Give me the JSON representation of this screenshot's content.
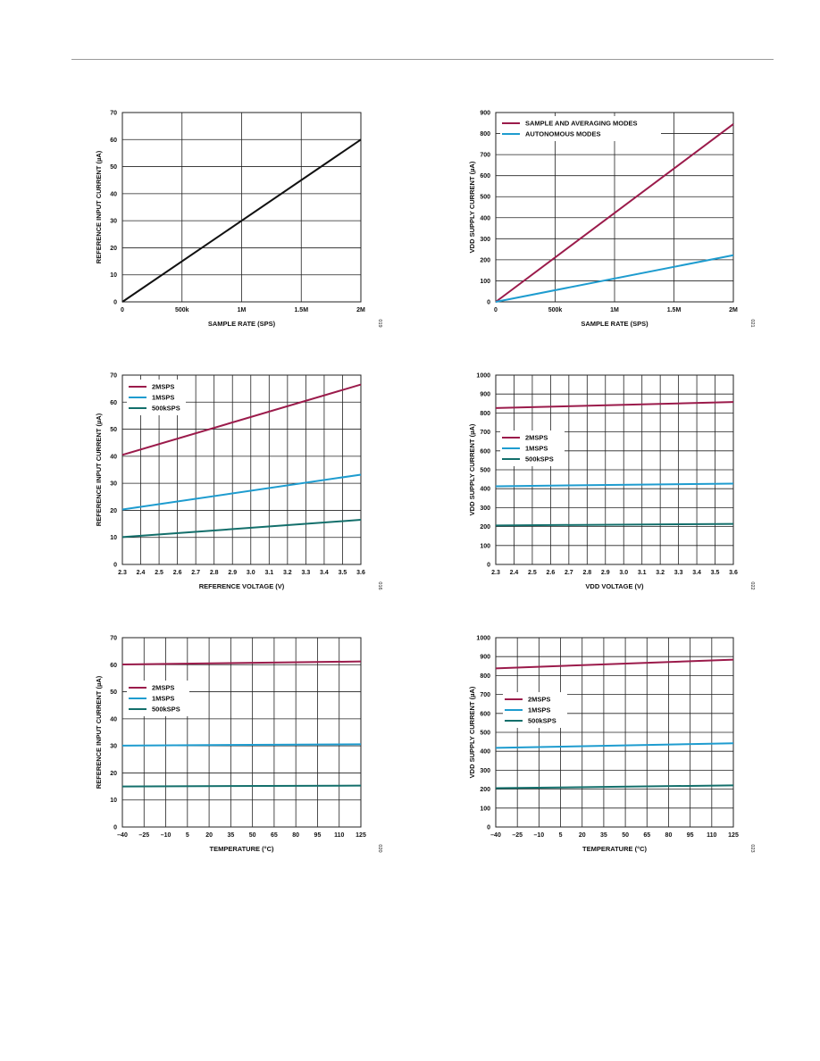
{
  "colors": {
    "maroon": "#9b1b4b",
    "cyan": "#1e9ccf",
    "teal": "#136f6b",
    "black": "#111111",
    "grid": "#222222"
  },
  "chart_data": [
    {
      "type": "line",
      "xlabel": "SAMPLE RATE (SPS)",
      "ylabel": "REFERENCE INPUT CURRENT (µA)",
      "xlim": [
        0,
        2000000
      ],
      "ylim": [
        0,
        70
      ],
      "x_ticks": [
        0,
        500000,
        1000000,
        1500000,
        2000000
      ],
      "x_tick_labels": [
        "0",
        "500k",
        "1M",
        "1.5M",
        "2M"
      ],
      "y_ticks": [
        0,
        10,
        20,
        30,
        40,
        50,
        60,
        70
      ],
      "y_tick_labels": [
        "0",
        "10",
        "20",
        "30",
        "40",
        "50",
        "60",
        "70"
      ],
      "grid": true,
      "legend": "none",
      "figure_number": "019",
      "series": [
        {
          "color": "black",
          "x": [
            0,
            2000000
          ],
          "y": [
            0,
            60
          ]
        }
      ]
    },
    {
      "type": "line",
      "xlabel": "SAMPLE RATE (SPS)",
      "ylabel": "VDD SUPPLY CURRENT (µA)",
      "xlim": [
        0,
        2000000
      ],
      "ylim": [
        0,
        900
      ],
      "x_ticks": [
        0,
        500000,
        1000000,
        1500000,
        2000000
      ],
      "x_tick_labels": [
        "0",
        "500k",
        "1M",
        "1.5M",
        "2M"
      ],
      "y_ticks": [
        0,
        100,
        200,
        300,
        400,
        500,
        600,
        700,
        800,
        900
      ],
      "y_tick_labels": [
        "0",
        "100",
        "200",
        "300",
        "400",
        "500",
        "600",
        "700",
        "800",
        "900"
      ],
      "grid": true,
      "legend": "top-left",
      "figure_number": "021",
      "series": [
        {
          "name": "SAMPLE AND AVERAGING MODES",
          "color": "maroon",
          "x": [
            0,
            2000000
          ],
          "y": [
            0,
            845
          ]
        },
        {
          "name": "AUTONOMOUS MODES",
          "color": "cyan",
          "x": [
            0,
            2000000
          ],
          "y": [
            0,
            222
          ]
        }
      ]
    },
    {
      "type": "line",
      "xlabel": "REFERENCE VOLTAGE (V)",
      "ylabel": "REFERENCE INPUT CURRENT (µA)",
      "xlim": [
        2.3,
        3.6
      ],
      "ylim": [
        0,
        70
      ],
      "x_ticks": [
        2.3,
        2.4,
        2.5,
        2.6,
        2.7,
        2.8,
        2.9,
        3.0,
        3.1,
        3.2,
        3.3,
        3.4,
        3.5,
        3.6
      ],
      "x_tick_labels": [
        "2.3",
        "2.4",
        "2.5",
        "2.6",
        "2.7",
        "2.8",
        "2.9",
        "3.0",
        "3.1",
        "3.2",
        "3.3",
        "3.4",
        "3.5",
        "3.6"
      ],
      "y_ticks": [
        0,
        10,
        20,
        30,
        40,
        50,
        60,
        70
      ],
      "y_tick_labels": [
        "0",
        "10",
        "20",
        "30",
        "40",
        "50",
        "60",
        "70"
      ],
      "grid": true,
      "legend": "top-left",
      "figure_number": "016",
      "series": [
        {
          "name": "2MSPS",
          "color": "maroon",
          "x": [
            2.3,
            3.6
          ],
          "y": [
            40.5,
            66.5
          ]
        },
        {
          "name": "1MSPS",
          "color": "cyan",
          "x": [
            2.3,
            3.6
          ],
          "y": [
            20.3,
            33.2
          ]
        },
        {
          "name": "500kSPS",
          "color": "teal",
          "x": [
            2.3,
            3.6
          ],
          "y": [
            10.1,
            16.5
          ]
        }
      ]
    },
    {
      "type": "line",
      "xlabel": "VDD VOLTAGE (V)",
      "ylabel": "VDD SUPPLY CURRENT (µA)",
      "xlim": [
        2.3,
        3.6
      ],
      "ylim": [
        0,
        1000
      ],
      "x_ticks": [
        2.3,
        2.4,
        2.5,
        2.6,
        2.7,
        2.8,
        2.9,
        3.0,
        3.1,
        3.2,
        3.3,
        3.4,
        3.5,
        3.6
      ],
      "x_tick_labels": [
        "2.3",
        "2.4",
        "2.5",
        "2.6",
        "2.7",
        "2.8",
        "2.9",
        "3.0",
        "3.1",
        "3.2",
        "3.3",
        "3.4",
        "3.5",
        "3.6"
      ],
      "y_ticks": [
        0,
        100,
        200,
        300,
        400,
        500,
        600,
        700,
        800,
        900,
        1000
      ],
      "y_tick_labels": [
        "0",
        "100",
        "200",
        "300",
        "400",
        "500",
        "600",
        "700",
        "800",
        "900",
        "1000"
      ],
      "grid": true,
      "legend": "center-left",
      "figure_number": "022",
      "series": [
        {
          "name": "2MSPS",
          "color": "maroon",
          "x": [
            2.3,
            3.6
          ],
          "y": [
            826,
            858
          ]
        },
        {
          "name": "1MSPS",
          "color": "cyan",
          "x": [
            2.3,
            3.6
          ],
          "y": [
            413,
            427
          ]
        },
        {
          "name": "500kSPS",
          "color": "teal",
          "x": [
            2.3,
            3.6
          ],
          "y": [
            206,
            214
          ]
        }
      ]
    },
    {
      "type": "line",
      "xlabel": "TEMPERATURE (°C)",
      "ylabel": "REFERENCE INPUT CURRENT (µA)",
      "xlim": [
        -40,
        125
      ],
      "ylim": [
        0,
        70
      ],
      "x_ticks": [
        -40,
        -25,
        -10,
        5,
        20,
        35,
        50,
        65,
        80,
        95,
        110,
        125
      ],
      "x_tick_labels": [
        "–40",
        "–25",
        "–10",
        "5",
        "20",
        "35",
        "50",
        "65",
        "80",
        "95",
        "110",
        "125"
      ],
      "y_ticks": [
        0,
        10,
        20,
        30,
        40,
        50,
        60,
        70
      ],
      "y_tick_labels": [
        "0",
        "10",
        "20",
        "30",
        "40",
        "50",
        "60",
        "70"
      ],
      "grid": true,
      "legend": "center-left",
      "figure_number": "020",
      "series": [
        {
          "name": "2MSPS",
          "color": "maroon",
          "x": [
            -40,
            125
          ],
          "y": [
            60.1,
            61.2
          ]
        },
        {
          "name": "1MSPS",
          "color": "cyan",
          "x": [
            -40,
            125
          ],
          "y": [
            30.1,
            30.6
          ]
        },
        {
          "name": "500kSPS",
          "color": "teal",
          "x": [
            -40,
            125
          ],
          "y": [
            15.0,
            15.3
          ]
        }
      ]
    },
    {
      "type": "line",
      "xlabel": "TEMPERATURE (°C)",
      "ylabel": "VDD SUPPLY CURRENT (µA)",
      "xlim": [
        -40,
        125
      ],
      "ylim": [
        0,
        1000
      ],
      "x_ticks": [
        -40,
        -25,
        -10,
        5,
        20,
        35,
        50,
        65,
        80,
        95,
        110,
        125
      ],
      "x_tick_labels": [
        "–40",
        "–25",
        "–10",
        "5",
        "20",
        "35",
        "50",
        "65",
        "80",
        "95",
        "110",
        "125"
      ],
      "y_ticks": [
        0,
        100,
        200,
        300,
        400,
        500,
        600,
        700,
        800,
        900,
        1000
      ],
      "y_tick_labels": [
        "0",
        "100",
        "200",
        "300",
        "400",
        "500",
        "600",
        "700",
        "800",
        "900",
        "1000"
      ],
      "grid": true,
      "legend": "center-left",
      "figure_number": "023",
      "series": [
        {
          "name": "2MSPS",
          "color": "maroon",
          "x": [
            -40,
            125
          ],
          "y": [
            838,
            884
          ]
        },
        {
          "name": "1MSPS",
          "color": "cyan",
          "x": [
            -40,
            125
          ],
          "y": [
            418,
            442
          ]
        },
        {
          "name": "500kSPS",
          "color": "teal",
          "x": [
            -40,
            125
          ],
          "y": [
            205,
            220
          ]
        }
      ]
    }
  ]
}
